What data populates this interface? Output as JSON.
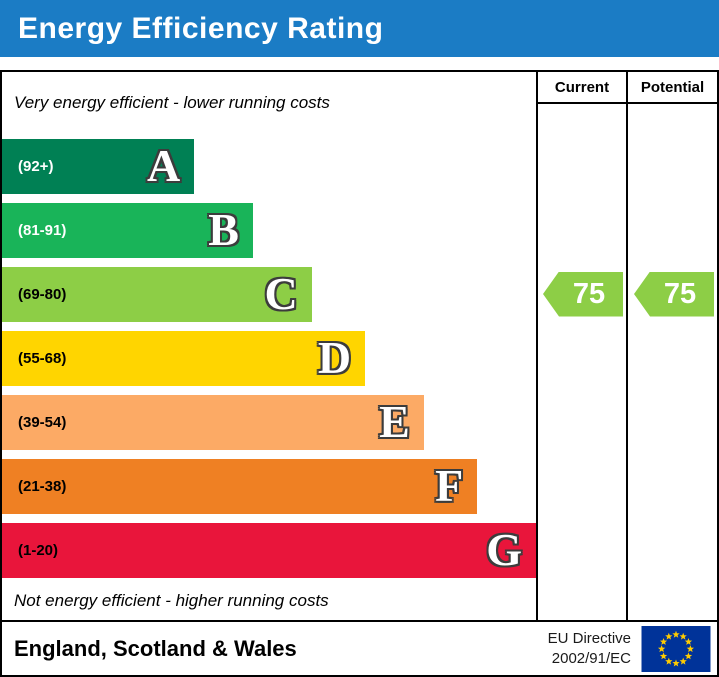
{
  "header": {
    "title": "Energy Efficiency Rating",
    "bg_color": "#1b7cc5",
    "text_color": "#ffffff"
  },
  "columns": {
    "current": "Current",
    "potential": "Potential"
  },
  "notes": {
    "top": "Very energy efficient - lower running costs",
    "bottom": "Not energy efficient - higher running costs"
  },
  "chart_data": {
    "type": "bar",
    "title": "Energy Efficiency Rating",
    "bands": [
      {
        "letter": "A",
        "range": "(92+)",
        "color": "#008054",
        "range_text_color": "#ffffff",
        "width_pct": 36
      },
      {
        "letter": "B",
        "range": "(81-91)",
        "color": "#19b459",
        "range_text_color": "#ffffff",
        "width_pct": 47
      },
      {
        "letter": "C",
        "range": "(69-80)",
        "color": "#8dce46",
        "range_text_color": "#000000",
        "width_pct": 58
      },
      {
        "letter": "D",
        "range": "(55-68)",
        "color": "#ffd500",
        "range_text_color": "#000000",
        "width_pct": 68
      },
      {
        "letter": "E",
        "range": "(39-54)",
        "color": "#fcaa65",
        "range_text_color": "#000000",
        "width_pct": 79
      },
      {
        "letter": "F",
        "range": "(21-38)",
        "color": "#ef8023",
        "range_text_color": "#000000",
        "width_pct": 89
      },
      {
        "letter": "G",
        "range": "(1-20)",
        "color": "#e9153b",
        "range_text_color": "#000000",
        "width_pct": 100
      }
    ],
    "ratings": {
      "current": {
        "value": "75",
        "band_letter": "C",
        "band_index": 2,
        "color": "#8dce46"
      },
      "potential": {
        "value": "75",
        "band_letter": "C",
        "band_index": 2,
        "color": "#8dce46"
      }
    }
  },
  "footer": {
    "region": "England, Scotland & Wales",
    "directive_line1": "EU Directive",
    "directive_line2": "2002/91/EC",
    "flag_colors": {
      "field": "#003399",
      "stars": "#ffcc00"
    }
  }
}
